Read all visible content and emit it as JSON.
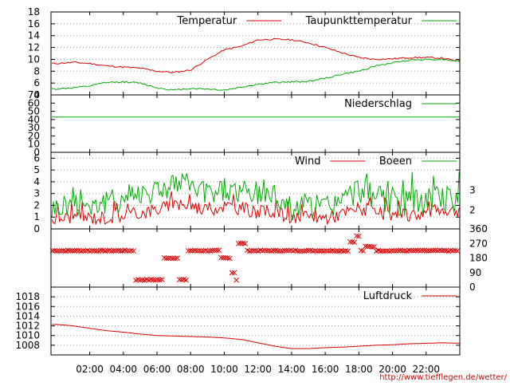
{
  "footer_url": "http://www.tiefflegen.de/wetter/",
  "colors": {
    "red": "#dd0000",
    "green": "#00aa00",
    "axis": "#000000",
    "grid": "#999999"
  },
  "x_axis": {
    "range_hours": [
      -0.3,
      24.0
    ],
    "tick_labels": [
      "02:00",
      "04:00",
      "06:00",
      "08:00",
      "10:00",
      "12:00",
      "14:00",
      "16:00",
      "18:00",
      "20:00",
      "22:00"
    ],
    "tick_hours": [
      2,
      4,
      6,
      8,
      10,
      12,
      14,
      16,
      18,
      20,
      22
    ]
  },
  "chart_data": [
    {
      "type": "line",
      "ylim": [
        4,
        18
      ],
      "yticks": [
        "18",
        "16",
        "14",
        "12",
        "10",
        "8",
        "6",
        "4"
      ],
      "ytick_values": [
        18,
        16,
        14,
        12,
        10,
        8,
        6,
        4
      ],
      "grid": true,
      "legend": "top-right",
      "series": [
        {
          "name": "Temperatur",
          "color": "#dd0000",
          "x": [
            0,
            1,
            2,
            3,
            4,
            5,
            6,
            7,
            8,
            9,
            10,
            11,
            12,
            13,
            14,
            15,
            16,
            17,
            18,
            19,
            20,
            21,
            22,
            23,
            24
          ],
          "y": [
            9.3,
            9.5,
            9.3,
            8.9,
            8.7,
            8.5,
            8.0,
            7.8,
            8.2,
            10.0,
            11.6,
            12.2,
            13.3,
            13.4,
            13.3,
            12.8,
            12.0,
            11.1,
            10.3,
            10.0,
            10.1,
            10.3,
            10.3,
            10.2,
            9.6
          ]
        },
        {
          "name": "Taupunkttemperatur",
          "color": "#00aa00",
          "x": [
            0,
            1,
            2,
            3,
            4,
            5,
            6,
            7,
            8,
            9,
            10,
            11,
            12,
            13,
            14,
            15,
            16,
            17,
            18,
            19,
            20,
            21,
            22,
            23,
            24
          ],
          "y": [
            5.0,
            5.2,
            5.5,
            6.1,
            6.2,
            6.0,
            5.2,
            4.8,
            5.1,
            5.0,
            4.8,
            5.3,
            5.8,
            6.1,
            6.2,
            6.3,
            6.8,
            7.5,
            8.0,
            8.9,
            9.4,
            9.9,
            10.0,
            10.0,
            9.7
          ]
        }
      ]
    },
    {
      "type": "line",
      "ylim": [
        0,
        70
      ],
      "yticks": [
        "70",
        "60",
        "50",
        "40",
        "30",
        "20",
        "10",
        "0"
      ],
      "ytick_values": [
        70,
        60,
        50,
        40,
        30,
        20,
        10,
        0
      ],
      "grid": false,
      "legend": "top-right",
      "series": [
        {
          "name": "Niederschlag",
          "color": "#00aa00",
          "x": [
            0,
            24
          ],
          "y": [
            43,
            43
          ]
        }
      ]
    },
    {
      "type": "line",
      "ylim": [
        0,
        6.5
      ],
      "yticks": [
        "6",
        "5",
        "4",
        "3",
        "2",
        "1",
        "0"
      ],
      "ytick_values": [
        6,
        5,
        4,
        3,
        2,
        1,
        0
      ],
      "right_ticks": [
        "3",
        "2"
      ],
      "right_tick_values": [
        3.3,
        1.6
      ],
      "grid": true,
      "legend": "top-right",
      "series": [
        {
          "name": "Wind",
          "color": "#dd0000",
          "x": [
            0,
            1,
            2,
            3,
            4,
            5,
            6,
            7,
            8,
            9,
            10,
            11,
            12,
            13,
            14,
            15,
            16,
            17,
            18,
            19,
            20,
            21,
            22,
            23,
            24
          ],
          "y": [
            0.8,
            1.0,
            0.9,
            0.9,
            1.1,
            1.3,
            1.6,
            2.0,
            1.9,
            1.6,
            1.9,
            1.7,
            1.3,
            1.5,
            0.7,
            0.9,
            0.9,
            1.2,
            1.7,
            1.3,
            1.0,
            1.1,
            1.3,
            1.6,
            1.5
          ]
        },
        {
          "name": "Boeen",
          "color": "#00aa00",
          "x": [
            0,
            1,
            2,
            3,
            4,
            5,
            6,
            7,
            8,
            9,
            10,
            11,
            12,
            13,
            14,
            15,
            16,
            17,
            18,
            19,
            20,
            21,
            22,
            23,
            24
          ],
          "y": [
            1.7,
            2.1,
            2.0,
            2.1,
            2.5,
            2.9,
            3.2,
            3.7,
            3.3,
            2.9,
            3.3,
            3.0,
            2.8,
            2.8,
            1.7,
            1.9,
            1.8,
            2.3,
            3.2,
            2.7,
            1.9,
            2.1,
            2.3,
            2.5,
            2.4
          ]
        }
      ]
    },
    {
      "type": "scatter",
      "ylim": [
        0,
        360
      ],
      "right_ticks": [
        "360",
        "270",
        "180",
        "90",
        "0"
      ],
      "right_tick_values": [
        360,
        270,
        180,
        90,
        0
      ],
      "grid": false,
      "series": [
        {
          "marker": "x",
          "color": "#dd0000",
          "x": [
            0,
            0.5,
            1,
            1.5,
            2,
            2.5,
            3,
            3.5,
            4,
            4.5,
            4.8,
            5.0,
            5.3,
            5.6,
            5.9,
            6.2,
            6.5,
            6.8,
            7.1,
            7.4,
            7.7,
            8.0,
            8.5,
            9.0,
            9.5,
            10.0,
            10.2,
            10.5,
            10.7,
            11.0,
            11.5,
            12,
            12.5,
            13,
            13.5,
            14,
            14.5,
            15,
            15.5,
            16,
            16.5,
            17,
            17.3,
            17.6,
            17.9,
            18.2,
            18.5,
            18.8,
            19.2,
            19.6,
            20,
            20.5,
            21,
            21.5,
            22,
            22.5,
            23,
            23.5,
            24
          ],
          "y": [
            225,
            225,
            225,
            225,
            225,
            225,
            225,
            225,
            225,
            225,
            45,
            45,
            45,
            45,
            45,
            45,
            180,
            180,
            180,
            45,
            45,
            225,
            225,
            225,
            225,
            180,
            180,
            90,
            45,
            270,
            225,
            225,
            225,
            225,
            225,
            225,
            225,
            225,
            225,
            225,
            225,
            225,
            225,
            280,
            315,
            225,
            250,
            250,
            225,
            225,
            225,
            225,
            225,
            225,
            225,
            225,
            225,
            225,
            225
          ]
        }
      ]
    },
    {
      "type": "line",
      "ylim": [
        1006,
        1020
      ],
      "yticks": [
        "1018",
        "1016",
        "1014",
        "1012",
        "1010",
        "1008"
      ],
      "ytick_values": [
        1018,
        1016,
        1014,
        1012,
        1010,
        1008
      ],
      "grid": true,
      "legend": "top-right",
      "series": [
        {
          "name": "Luftdruck",
          "color": "#dd0000",
          "x": [
            0,
            1,
            2,
            3,
            4,
            5,
            6,
            7,
            8,
            9,
            10,
            11,
            12,
            13,
            14,
            15,
            16,
            17,
            18,
            19,
            20,
            21,
            22,
            23,
            24
          ],
          "y": [
            1012.3,
            1012.0,
            1011.5,
            1011.0,
            1010.7,
            1010.3,
            1010.0,
            1009.9,
            1009.8,
            1009.7,
            1009.5,
            1009.2,
            1008.5,
            1007.8,
            1007.3,
            1007.3,
            1007.5,
            1007.6,
            1007.8,
            1008.0,
            1008.1,
            1008.3,
            1008.4,
            1008.5,
            1008.4
          ]
        }
      ]
    }
  ]
}
